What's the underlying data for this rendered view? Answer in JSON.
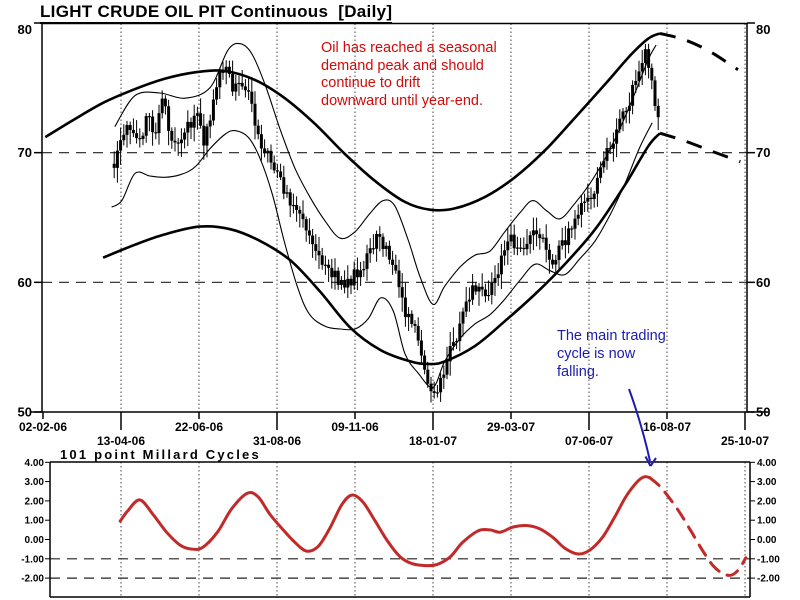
{
  "annotations": {
    "red_note": "Oil has reached a seasonal\ndemand peak and should\ncontinue to drift\ndownward until year-end.",
    "blue_note": "The main trading\ncycle is now\nfalling."
  },
  "colors": {
    "candle": "#000000",
    "band": "#000000",
    "grid": "#444444",
    "axis": "#000000",
    "cycle_red": "#c22a2a",
    "note_red": "#d40909",
    "note_blue": "#1c1cae"
  },
  "chart_data": {
    "type": "candlestick",
    "x_unit": "tick index: 0=02-02-06, 1=13-04-06 ... 9=25-10-07",
    "main": {
      "title": "LIGHT CRUDE OIL PIT Continuous  [Daily]",
      "ylim": [
        50,
        80
      ],
      "y_ticks": [
        80,
        70,
        60,
        50
      ],
      "dashed_levels": [
        70,
        60
      ],
      "x_tick_labels": [
        "02-02-06",
        "13-04-06",
        "22-06-06",
        "31-08-06",
        "09-11-06",
        "18-01-07",
        "29-03-07",
        "07-06-07",
        "16-08-07",
        "25-10-07"
      ],
      "price_close": [
        [
          0.92,
          69.3
        ],
        [
          1.03,
          71.0
        ],
        [
          1.13,
          72.3
        ],
        [
          1.23,
          70.8
        ],
        [
          1.33,
          72.8
        ],
        [
          1.44,
          71.8
        ],
        [
          1.54,
          74.3
        ],
        [
          1.64,
          71.4
        ],
        [
          1.74,
          70.4
        ],
        [
          1.85,
          71.8
        ],
        [
          1.95,
          73.3
        ],
        [
          2.05,
          70.9
        ],
        [
          2.15,
          72.6
        ],
        [
          2.26,
          75.6
        ],
        [
          2.33,
          77.2
        ],
        [
          2.44,
          75.0
        ],
        [
          2.54,
          75.9
        ],
        [
          2.64,
          74.2
        ],
        [
          2.74,
          72.0
        ],
        [
          2.85,
          70.0
        ],
        [
          2.95,
          69.0
        ],
        [
          3.05,
          67.8
        ],
        [
          3.15,
          66.5
        ],
        [
          3.26,
          65.8
        ],
        [
          3.36,
          64.8
        ],
        [
          3.46,
          63.0
        ],
        [
          3.56,
          61.4
        ],
        [
          3.67,
          60.8
        ],
        [
          3.77,
          60.2
        ],
        [
          3.87,
          59.6
        ],
        [
          3.97,
          60.4
        ],
        [
          4.08,
          61.2
        ],
        [
          4.18,
          62.4
        ],
        [
          4.28,
          63.4
        ],
        [
          4.38,
          63.0
        ],
        [
          4.49,
          61.5
        ],
        [
          4.59,
          59.0
        ],
        [
          4.69,
          57.0
        ],
        [
          4.79,
          55.8
        ],
        [
          4.87,
          53.5
        ],
        [
          4.95,
          51.6
        ],
        [
          5.0,
          50.7
        ],
        [
          5.08,
          52.3
        ],
        [
          5.18,
          54.2
        ],
        [
          5.28,
          55.6
        ],
        [
          5.38,
          57.6
        ],
        [
          5.49,
          59.2
        ],
        [
          5.59,
          59.9
        ],
        [
          5.69,
          58.9
        ],
        [
          5.79,
          60.3
        ],
        [
          5.9,
          61.8
        ],
        [
          6.0,
          63.2
        ],
        [
          6.1,
          62.4
        ],
        [
          6.21,
          63.6
        ],
        [
          6.31,
          64.6
        ],
        [
          6.41,
          62.9
        ],
        [
          6.51,
          61.7
        ],
        [
          6.62,
          62.3
        ],
        [
          6.72,
          63.8
        ],
        [
          6.82,
          64.6
        ],
        [
          6.92,
          65.9
        ],
        [
          7.03,
          67.0
        ],
        [
          7.13,
          68.1
        ],
        [
          7.23,
          70.0
        ],
        [
          7.33,
          71.4
        ],
        [
          7.44,
          72.9
        ],
        [
          7.54,
          74.4
        ],
        [
          7.64,
          76.3
        ],
        [
          7.72,
          77.8
        ],
        [
          7.79,
          76.2
        ],
        [
          7.86,
          73.6
        ],
        [
          7.92,
          70.9
        ]
      ],
      "band_outer_upper": [
        [
          0.03,
          71.2
        ],
        [
          0.41,
          72.6
        ],
        [
          0.79,
          73.9
        ],
        [
          1.18,
          74.9
        ],
        [
          1.56,
          75.7
        ],
        [
          1.95,
          76.2
        ],
        [
          2.33,
          76.3
        ],
        [
          2.72,
          75.6
        ],
        [
          3.1,
          74.2
        ],
        [
          3.49,
          72.2
        ],
        [
          3.87,
          69.9
        ],
        [
          4.26,
          67.8
        ],
        [
          4.64,
          66.2
        ],
        [
          4.96,
          65.6
        ],
        [
          5.28,
          65.7
        ],
        [
          5.67,
          66.6
        ],
        [
          6.05,
          68.1
        ],
        [
          6.44,
          70.2
        ],
        [
          6.82,
          72.7
        ],
        [
          7.21,
          75.3
        ],
        [
          7.53,
          77.5
        ],
        [
          7.76,
          78.8
        ],
        [
          7.91,
          79.2
        ]
      ],
      "band_outer_upper_projection": [
        [
          7.91,
          79.2
        ],
        [
          8.23,
          78.7
        ],
        [
          8.55,
          77.8
        ],
        [
          8.91,
          76.4
        ]
      ],
      "band_outer_lower": [
        [
          0.77,
          61.9
        ],
        [
          1.18,
          62.9
        ],
        [
          1.56,
          63.7
        ],
        [
          2.01,
          64.3
        ],
        [
          2.4,
          64.1
        ],
        [
          2.78,
          63.2
        ],
        [
          3.17,
          61.7
        ],
        [
          3.55,
          59.3
        ],
        [
          3.94,
          56.5
        ],
        [
          4.32,
          54.8
        ],
        [
          4.71,
          53.9
        ],
        [
          4.94,
          53.7
        ],
        [
          5.15,
          53.9
        ],
        [
          5.54,
          55.1
        ],
        [
          5.92,
          57.0
        ],
        [
          6.31,
          59.1
        ],
        [
          6.69,
          61.4
        ],
        [
          7.08,
          64.1
        ],
        [
          7.46,
          67.5
        ],
        [
          7.76,
          70.5
        ],
        [
          7.91,
          71.5
        ]
      ],
      "band_outer_lower_projection": [
        [
          7.91,
          71.5
        ],
        [
          8.23,
          70.9
        ],
        [
          8.58,
          70.1
        ],
        [
          8.94,
          69.3
        ]
      ],
      "band_inner_upper": [
        [
          0.92,
          72.0
        ],
        [
          1.18,
          74.4
        ],
        [
          1.5,
          74.6
        ],
        [
          1.82,
          74.2
        ],
        [
          2.14,
          75.0
        ],
        [
          2.37,
          77.9
        ],
        [
          2.53,
          78.4
        ],
        [
          2.68,
          77.6
        ],
        [
          2.85,
          75.2
        ],
        [
          3.04,
          71.8
        ],
        [
          3.23,
          68.8
        ],
        [
          3.42,
          66.6
        ],
        [
          3.62,
          64.7
        ],
        [
          3.81,
          63.4
        ],
        [
          4.0,
          63.9
        ],
        [
          4.19,
          65.3
        ],
        [
          4.36,
          66.3
        ],
        [
          4.51,
          65.9
        ],
        [
          4.68,
          63.3
        ],
        [
          4.83,
          60.5
        ],
        [
          5.0,
          58.3
        ],
        [
          5.15,
          59.7
        ],
        [
          5.35,
          61.2
        ],
        [
          5.54,
          62.1
        ],
        [
          5.73,
          62.4
        ],
        [
          5.92,
          63.9
        ],
        [
          6.12,
          65.4
        ],
        [
          6.28,
          66.3
        ],
        [
          6.46,
          65.5
        ],
        [
          6.63,
          64.9
        ],
        [
          6.82,
          66.1
        ],
        [
          7.01,
          67.6
        ],
        [
          7.21,
          69.6
        ],
        [
          7.4,
          71.9
        ],
        [
          7.59,
          74.6
        ],
        [
          7.76,
          77.2
        ],
        [
          7.86,
          78.3
        ]
      ],
      "band_inner_lower": [
        [
          0.88,
          65.8
        ],
        [
          1.01,
          66.3
        ],
        [
          1.18,
          68.4
        ],
        [
          1.37,
          68.2
        ],
        [
          1.56,
          68.1
        ],
        [
          1.76,
          68.3
        ],
        [
          1.95,
          68.9
        ],
        [
          2.14,
          70.3
        ],
        [
          2.33,
          71.4
        ],
        [
          2.46,
          71.7
        ],
        [
          2.63,
          71.2
        ],
        [
          2.78,
          69.6
        ],
        [
          2.94,
          66.8
        ],
        [
          3.1,
          63.0
        ],
        [
          3.27,
          59.5
        ],
        [
          3.42,
          57.5
        ],
        [
          3.62,
          56.6
        ],
        [
          3.81,
          56.4
        ],
        [
          4.0,
          56.4
        ],
        [
          4.17,
          57.2
        ],
        [
          4.33,
          58.8
        ],
        [
          4.49,
          57.8
        ],
        [
          4.64,
          54.5
        ],
        [
          4.81,
          53.0
        ],
        [
          5.0,
          51.9
        ],
        [
          5.15,
          53.9
        ],
        [
          5.35,
          55.7
        ],
        [
          5.54,
          56.8
        ],
        [
          5.73,
          57.5
        ],
        [
          5.92,
          58.7
        ],
        [
          6.12,
          60.2
        ],
        [
          6.31,
          61.4
        ],
        [
          6.5,
          60.9
        ],
        [
          6.69,
          60.6
        ],
        [
          6.88,
          61.8
        ],
        [
          7.08,
          63.2
        ],
        [
          7.27,
          65.2
        ],
        [
          7.46,
          67.6
        ],
        [
          7.65,
          70.4
        ],
        [
          7.81,
          72.3
        ]
      ]
    },
    "cycles": {
      "title": "101 point Millard Cycles",
      "ylim": [
        -3,
        4
      ],
      "y_ticks": [
        4,
        3,
        2,
        1,
        0,
        -1,
        -2
      ],
      "y_tick_labels": [
        "4.00",
        "3.00",
        "2.00",
        "1.00",
        "0.00",
        "-1.00",
        "-2.00"
      ],
      "dashed_levels": [
        -1,
        -2
      ],
      "solid": [
        [
          0.99,
          0.95
        ],
        [
          1.08,
          1.45
        ],
        [
          1.24,
          2.05
        ],
        [
          1.41,
          1.3
        ],
        [
          1.58,
          0.4
        ],
        [
          1.76,
          -0.3
        ],
        [
          1.91,
          -0.5
        ],
        [
          2.05,
          -0.4
        ],
        [
          2.24,
          0.4
        ],
        [
          2.42,
          1.6
        ],
        [
          2.62,
          2.4
        ],
        [
          2.76,
          2.2
        ],
        [
          2.91,
          1.3
        ],
        [
          3.08,
          0.5
        ],
        [
          3.23,
          -0.15
        ],
        [
          3.38,
          -0.6
        ],
        [
          3.53,
          -0.35
        ],
        [
          3.68,
          0.6
        ],
        [
          3.83,
          1.8
        ],
        [
          3.96,
          2.3
        ],
        [
          4.1,
          1.95
        ],
        [
          4.26,
          0.95
        ],
        [
          4.42,
          -0.1
        ],
        [
          4.58,
          -0.9
        ],
        [
          4.73,
          -1.25
        ],
        [
          4.9,
          -1.35
        ],
        [
          5.05,
          -1.3
        ],
        [
          5.22,
          -0.9
        ],
        [
          5.38,
          -0.15
        ],
        [
          5.58,
          0.45
        ],
        [
          5.73,
          0.5
        ],
        [
          5.86,
          0.38
        ],
        [
          6.03,
          0.65
        ],
        [
          6.21,
          0.72
        ],
        [
          6.37,
          0.55
        ],
        [
          6.54,
          0.1
        ],
        [
          6.69,
          -0.45
        ],
        [
          6.86,
          -0.75
        ],
        [
          7.01,
          -0.55
        ],
        [
          7.17,
          0.1
        ],
        [
          7.32,
          1.1
        ],
        [
          7.47,
          2.2
        ],
        [
          7.62,
          3.0
        ],
        [
          7.71,
          3.25
        ],
        [
          7.78,
          3.2
        ]
      ],
      "projection_dashed": [
        [
          7.78,
          3.2
        ],
        [
          7.91,
          2.75
        ],
        [
          8.04,
          2.1
        ],
        [
          8.17,
          1.35
        ],
        [
          8.32,
          0.35
        ],
        [
          8.46,
          -0.6
        ],
        [
          8.59,
          -1.35
        ],
        [
          8.71,
          -1.75
        ],
        [
          8.82,
          -1.85
        ],
        [
          8.92,
          -1.55
        ],
        [
          9.01,
          -0.95
        ]
      ]
    }
  }
}
